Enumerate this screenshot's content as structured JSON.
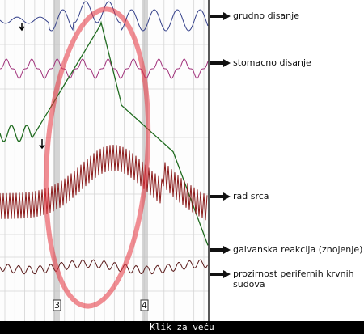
{
  "labels": [
    "grudno disanje",
    "stomacno disanje",
    "rad srca",
    "galvanska reakcija (znojenje)",
    "prozirnost perifernih krvnih"
  ],
  "label_continuation": "sudova",
  "markers": [
    "3",
    "4"
  ],
  "footer": "Klik za veću"
}
